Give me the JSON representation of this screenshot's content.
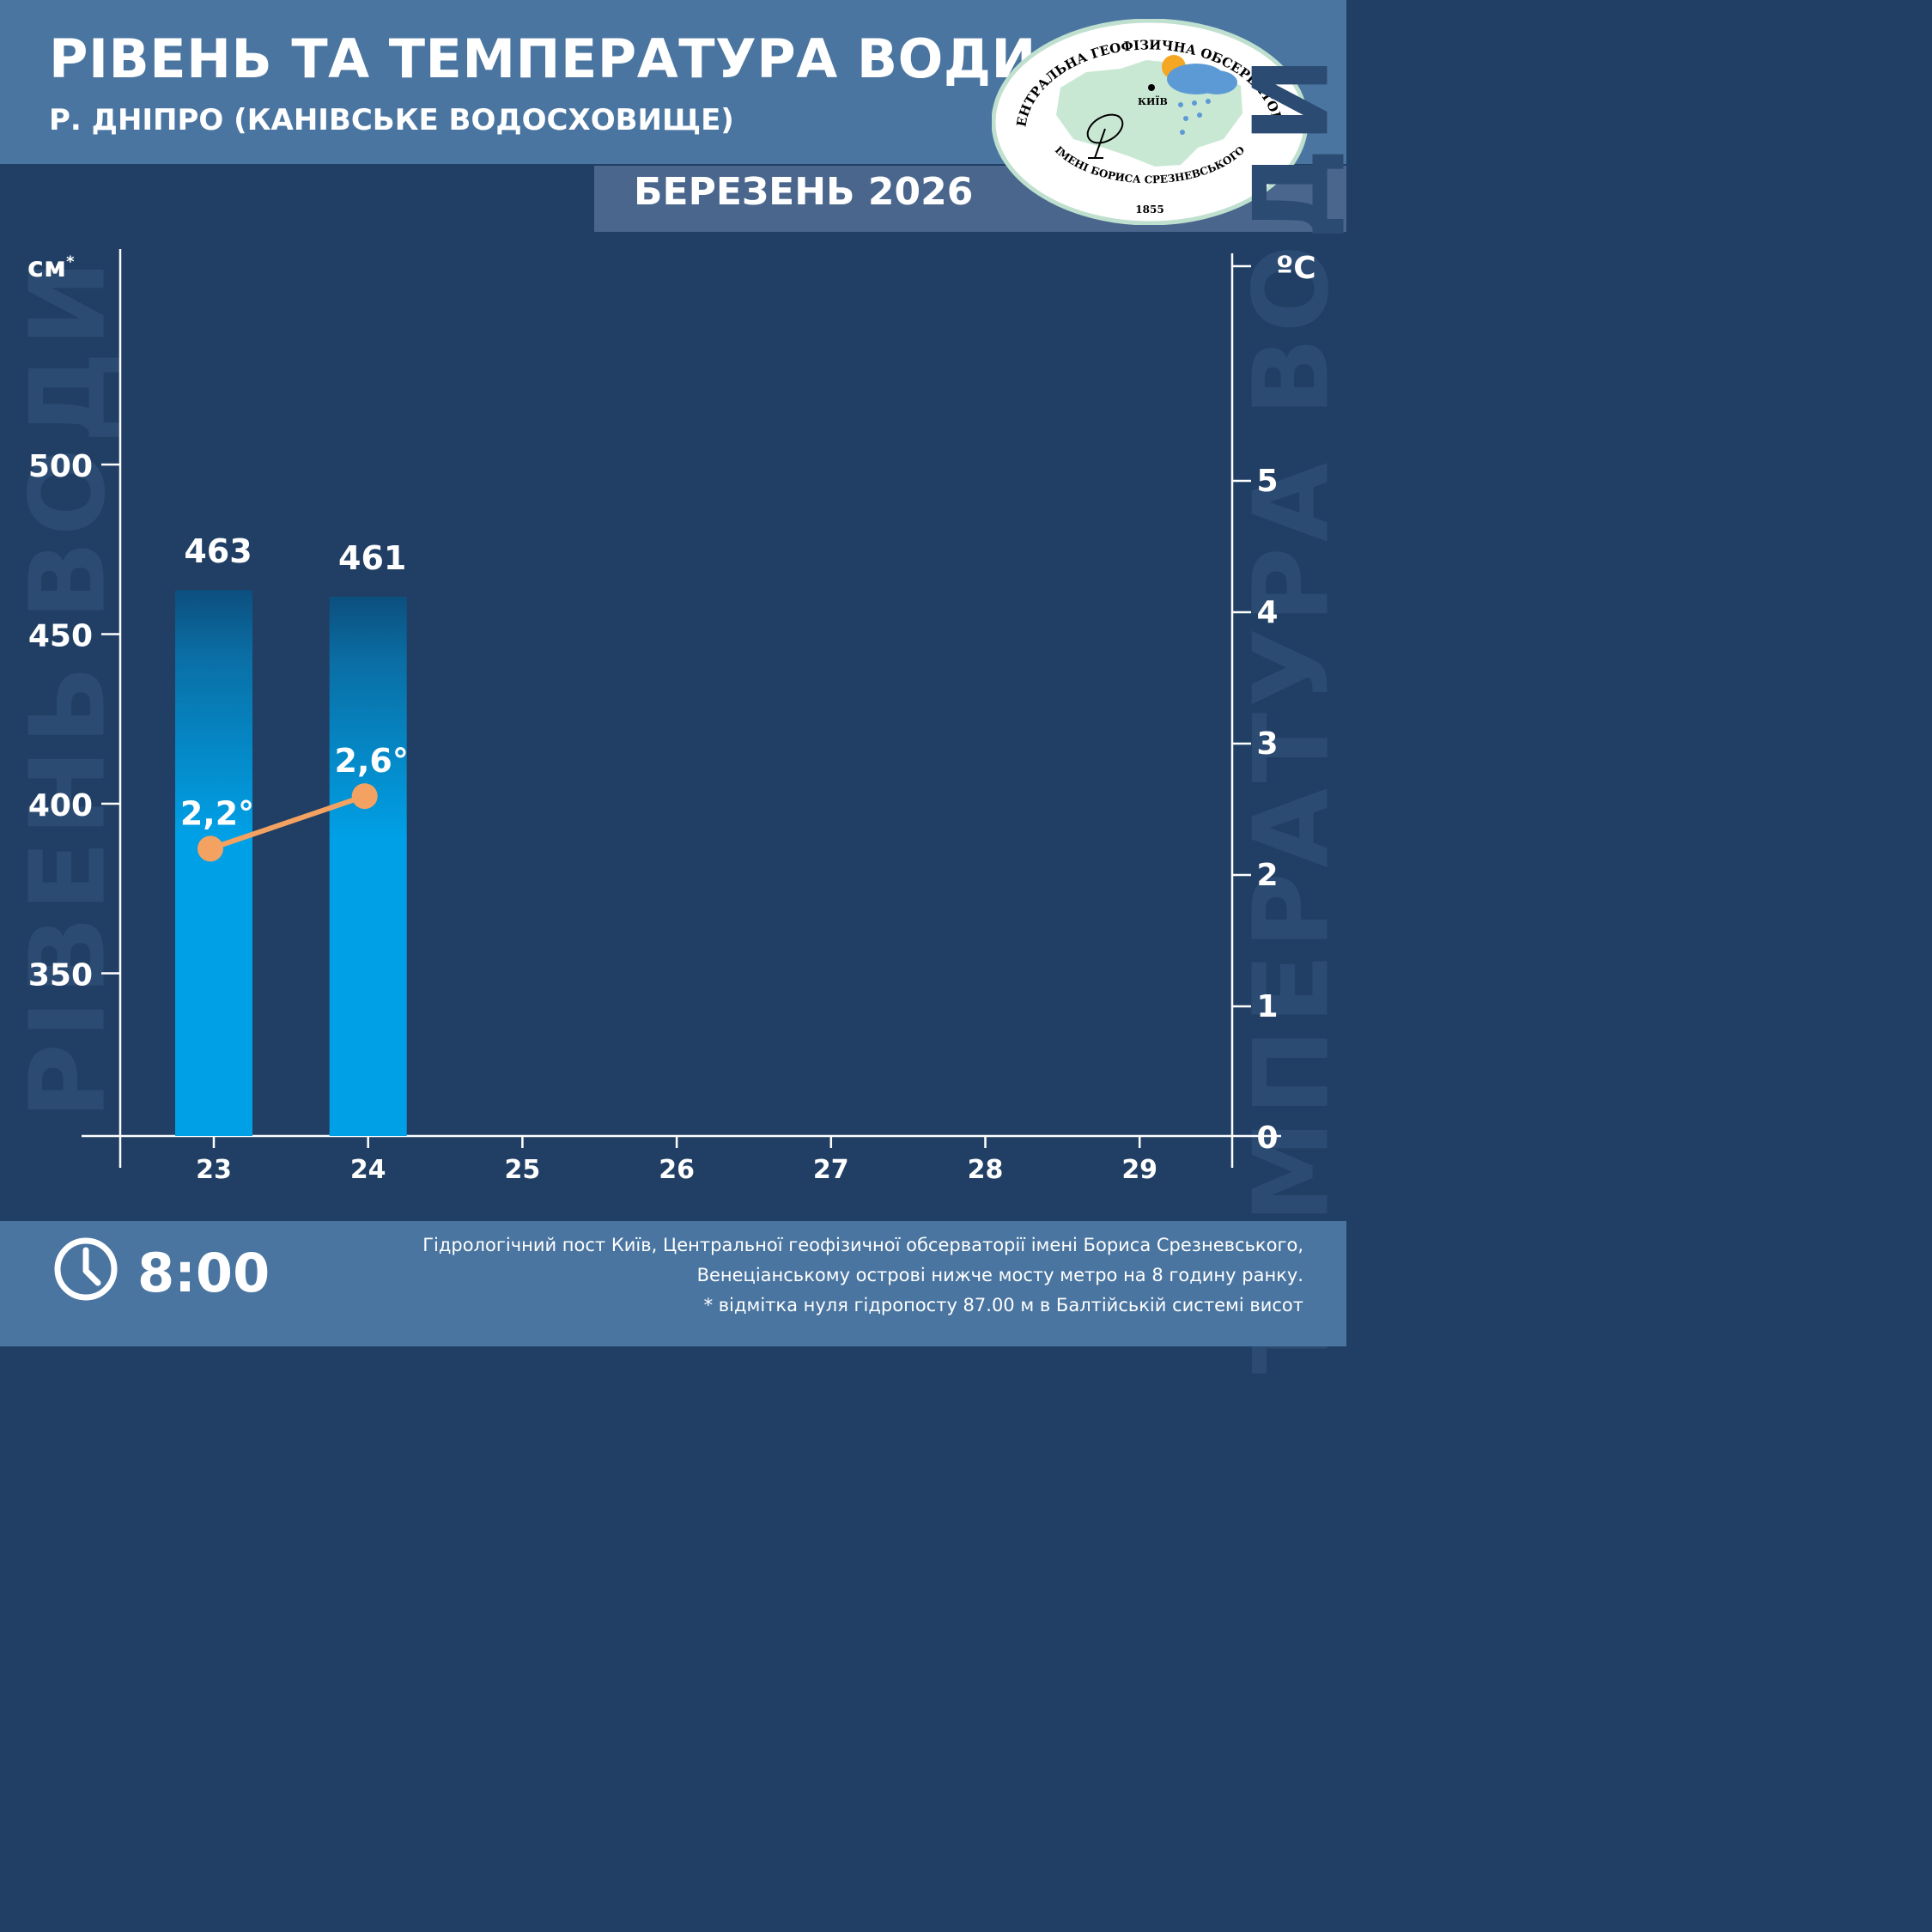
{
  "header": {
    "title": "РІВЕНЬ ТА ТЕМПЕРАТУРА ВОДИ",
    "subtitle": "Р. ДНІПРО (КАНІВСЬКЕ ВОДОСХОВИЩЕ)",
    "month": "БЕРЕЗЕНЬ 2026"
  },
  "logo": {
    "top_text": "ЦЕНТРАЛЬНА ГЕОФІЗИЧНА ОБСЕРВАТОРІЯ",
    "bottom_text": "ІМЕНІ БОРИСА СРЕЗНЕВСЬКОГО",
    "year": "1855",
    "city": "КИЇВ"
  },
  "axes": {
    "left_unit": "см",
    "left_unit_mark": "*",
    "right_unit": "ºС",
    "left_watermark": "РІВЕНЬ ВОДИ",
    "right_watermark": "ТЕМПЕРАТУРА ВОДИ"
  },
  "footer": {
    "time": "8:00",
    "note_line1": "Гідрологічний пост Київ, Центральної геофізичної обсерваторії імені Бориса Срезневського,",
    "note_line2": "Венеціанському острові нижче мосту метро  на 8 годину ранку.",
    "note_line3": "* відмітка нуля гідропосту 87.00 м в Балтійській системі висот"
  },
  "colors": {
    "bar": "#00a0e6",
    "bar_top": "#0c4f7e",
    "line": "#f4a261",
    "axis": "#ffffff"
  },
  "chart_data": {
    "type": "bar",
    "categories": [
      "23",
      "24",
      "25",
      "26",
      "27",
      "28",
      "29"
    ],
    "series": [
      {
        "name": "Рівень води, см",
        "axis": "left",
        "values": [
          463,
          461,
          null,
          null,
          null,
          null,
          null
        ],
        "labels": [
          "463",
          "461"
        ]
      },
      {
        "name": "Температура води, °С",
        "axis": "right",
        "type": "line",
        "values": [
          2.2,
          2.6,
          null,
          null,
          null,
          null,
          null
        ],
        "labels": [
          "2,2°",
          "2,6°"
        ]
      }
    ],
    "left_axis": {
      "ticks": [
        "350",
        "400",
        "450",
        "500"
      ]
    },
    "right_axis": {
      "ticks": [
        "0",
        "1",
        "2",
        "3",
        "4",
        "5"
      ],
      "ylim": [
        0,
        6
      ]
    }
  }
}
